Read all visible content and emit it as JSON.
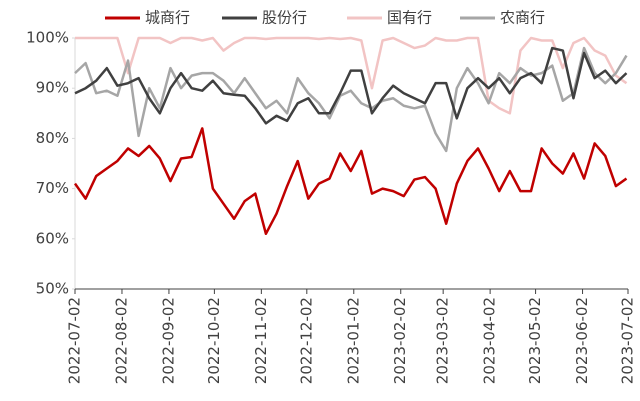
{
  "chart_data": {
    "type": "line",
    "x": [
      "2022-07-02",
      "2022-07-09",
      "2022-07-16",
      "2022-07-23",
      "2022-07-30",
      "2022-08-06",
      "2022-08-13",
      "2022-08-20",
      "2022-08-27",
      "2022-09-03",
      "2022-09-10",
      "2022-09-17",
      "2022-09-24",
      "2022-10-01",
      "2022-10-08",
      "2022-10-15",
      "2022-10-22",
      "2022-10-29",
      "2022-11-05",
      "2022-11-12",
      "2022-11-19",
      "2022-11-26",
      "2022-12-03",
      "2022-12-10",
      "2022-12-17",
      "2022-12-24",
      "2022-12-31",
      "2023-01-07",
      "2023-01-14",
      "2023-01-21",
      "2023-01-28",
      "2023-02-04",
      "2023-02-11",
      "2023-02-18",
      "2023-02-25",
      "2023-03-04",
      "2023-03-11",
      "2023-03-18",
      "2023-03-25",
      "2023-04-01",
      "2023-04-08",
      "2023-04-15",
      "2023-04-22",
      "2023-04-29",
      "2023-05-06",
      "2023-05-13",
      "2023-05-20",
      "2023-05-27",
      "2023-06-03",
      "2023-06-10",
      "2023-06-17",
      "2023-06-24",
      "2023-07-01"
    ],
    "series": [
      {
        "name": "城商行",
        "color": "#c00000",
        "values": [
          71,
          68,
          72.5,
          74,
          75.5,
          78,
          76.5,
          78.5,
          76,
          71.5,
          76,
          76.3,
          82,
          70,
          67,
          64,
          67.5,
          69,
          61,
          65,
          70.5,
          75.5,
          68,
          71,
          72,
          77,
          73.5,
          77.5,
          69,
          70,
          69.5,
          68.5,
          71.8,
          72.3,
          70,
          63,
          71,
          75.5,
          78,
          74,
          69.5,
          73.5,
          69.5,
          69.5,
          78,
          75,
          73,
          77,
          72,
          79,
          76.5,
          70.5,
          72
        ]
      },
      {
        "name": "股份行",
        "color": "#404040",
        "values": [
          89,
          90,
          91.5,
          94,
          90.5,
          91,
          92,
          88,
          85,
          90,
          93,
          90,
          89.5,
          91.5,
          89,
          88.7,
          88.5,
          86,
          83,
          84.5,
          83.5,
          87,
          88,
          85,
          85,
          89,
          93.5,
          93.5,
          85,
          88,
          90.5,
          89,
          88,
          87,
          91,
          91,
          84,
          90,
          92,
          90,
          92,
          89,
          92,
          93,
          91,
          98,
          97.5,
          88,
          97,
          92,
          93.5,
          91,
          93
        ]
      },
      {
        "name": "国有行",
        "color": "#f2c4c4",
        "values": [
          100,
          100,
          100,
          100,
          100,
          93,
          100,
          100,
          100,
          99,
          100,
          100,
          99.5,
          100,
          97.5,
          99,
          100,
          100,
          99.8,
          100,
          100,
          100,
          100,
          99.8,
          100,
          99.8,
          100,
          99.5,
          90,
          99.5,
          100,
          99,
          98,
          98.5,
          100,
          99.5,
          99.5,
          100,
          100,
          87.5,
          86,
          85,
          97.5,
          100,
          99.5,
          99.5,
          94,
          99,
          100,
          97.5,
          96.5,
          92.5,
          91
        ]
      },
      {
        "name": "农商行",
        "color": "#a6a6a6",
        "values": [
          93,
          95,
          89,
          89.5,
          88.5,
          95.5,
          80.5,
          90,
          86,
          94,
          90,
          92.5,
          93,
          93,
          91.5,
          89,
          92,
          89,
          86,
          87.5,
          85,
          92,
          89,
          87,
          84,
          88.5,
          89.5,
          87,
          86,
          87.5,
          88,
          86.5,
          86,
          86.5,
          81,
          77.5,
          90,
          94,
          91,
          87,
          93,
          91,
          94,
          92.5,
          93,
          94.5,
          87.5,
          89,
          98,
          93,
          91,
          93,
          96.5
        ]
      }
    ],
    "xlim": [
      "2022-07-02",
      "2023-07-02"
    ],
    "xticks": [
      "2022-07-02",
      "2022-08-02",
      "2022-09-02",
      "2022-10-02",
      "2022-11-02",
      "2022-12-02",
      "2023-01-02",
      "2023-02-02",
      "2023-03-02",
      "2023-04-02",
      "2023-05-02",
      "2023-06-02",
      "2023-07-02"
    ],
    "ylim": [
      50,
      100
    ],
    "yticks": [
      {
        "value": 50,
        "label": "50%"
      },
      {
        "value": 60,
        "label": "60%"
      },
      {
        "value": 70,
        "label": "70%"
      },
      {
        "value": 80,
        "label": "80%"
      },
      {
        "value": 90,
        "label": "90%"
      },
      {
        "value": 100,
        "label": "100%"
      }
    ],
    "legend": "top"
  }
}
